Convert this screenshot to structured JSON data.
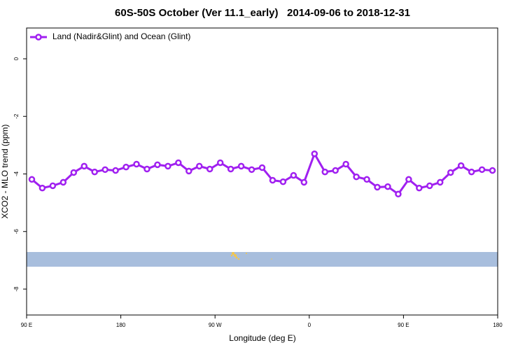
{
  "chart_data": {
    "type": "line",
    "title": "60S-50S October (Ver 11.1_early)   2014-09-06 to 2018-12-31",
    "x_label": "Longitude (deg E)",
    "y_label": "XCO2 - MLO trend (ppm)",
    "x": [
      95,
      105,
      115,
      125,
      135,
      145,
      155,
      165,
      175,
      185,
      195,
      205,
      215,
      225,
      235,
      245,
      255,
      265,
      275,
      285,
      295,
      305,
      315,
      325,
      335,
      345,
      355,
      365,
      375,
      385,
      395,
      405,
      415,
      425,
      435,
      445,
      455,
      465,
      475,
      485,
      495,
      505,
      515,
      525,
      535
    ],
    "series": [
      {
        "name": "Land (Nadir&Glint) and Ocean (Glint)",
        "color": "#a020f0",
        "values": [
          -4.19,
          -4.49,
          -4.41,
          -4.29,
          -3.95,
          -3.73,
          -3.93,
          -3.85,
          -3.88,
          -3.76,
          -3.66,
          -3.83,
          -3.68,
          -3.73,
          -3.61,
          -3.9,
          -3.73,
          -3.83,
          -3.61,
          -3.83,
          -3.73,
          -3.85,
          -3.78,
          -4.22,
          -4.27,
          -4.05,
          -4.29,
          -3.3,
          -3.93,
          -3.88,
          -3.66,
          -4.1,
          -4.19,
          -4.46,
          -4.44,
          -4.7,
          -4.19,
          -4.49,
          -4.41,
          -4.29,
          -3.95,
          -3.71,
          -3.93,
          -3.85,
          -3.88
        ]
      }
    ],
    "xlim": [
      90,
      540
    ],
    "xticks": [
      {
        "value": 90,
        "label": "90 E"
      },
      {
        "value": 180,
        "label": "180"
      },
      {
        "value": 270,
        "label": "90 W"
      },
      {
        "value": 360,
        "label": "0"
      },
      {
        "value": 450,
        "label": "90 E"
      },
      {
        "value": 540,
        "label": "180"
      }
    ],
    "ylim": [
      -8.9,
      1.07
    ],
    "yticks": [
      0,
      -2,
      -4,
      -6,
      -8
    ],
    "legend": "top-left"
  }
}
